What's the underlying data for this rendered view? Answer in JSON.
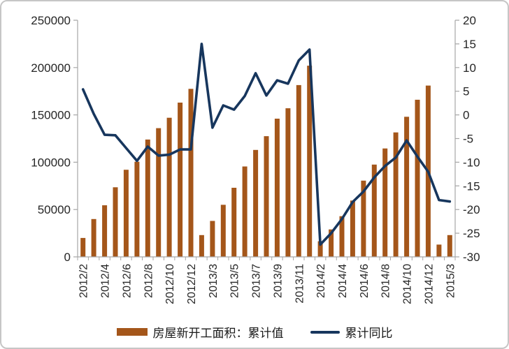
{
  "chart_data": {
    "type": "bar",
    "combo": "bar+line",
    "title": "",
    "categories": [
      "2012/2",
      "2012/3",
      "2012/4",
      "2012/5",
      "2012/6",
      "2012/7",
      "2012/8",
      "2012/9",
      "2012/10",
      "2012/11",
      "2012/12",
      "2013/2",
      "2013/3",
      "2013/4",
      "2013/5",
      "2013/6",
      "2013/7",
      "2013/8",
      "2013/9",
      "2013/10",
      "2013/11",
      "2013/12",
      "2014/2",
      "2014/3",
      "2014/4",
      "2014/5",
      "2014/6",
      "2014/7",
      "2014/8",
      "2014/9",
      "2014/10",
      "2014/11",
      "2014/12",
      "2015/2",
      "2015/3"
    ],
    "x_tick_labels_shown": [
      "2012/2",
      "2012/4",
      "2012/6",
      "2012/8",
      "2012/10",
      "2012/12",
      "2013/3",
      "2013/5",
      "2013/7",
      "2013/9",
      "2013/11",
      "2014/2",
      "2014/4",
      "2014/6",
      "2014/8",
      "2014/10",
      "2014/12",
      "2015/3"
    ],
    "series": [
      {
        "name": "房屋新开工面积：累计值",
        "type": "bar",
        "axis": "left",
        "color": "#A4561A",
        "values": [
          20000,
          40000,
          54500,
          73500,
          92000,
          100500,
          124000,
          136000,
          147000,
          163000,
          177500,
          23000,
          38000,
          55000,
          73000,
          95500,
          113000,
          127500,
          146000,
          157000,
          181500,
          202000,
          16500,
          29000,
          43000,
          59500,
          80500,
          97500,
          114500,
          131500,
          148000,
          166000,
          181000,
          13000,
          23000
        ]
      },
      {
        "name": "累计同比",
        "type": "line",
        "axis": "right",
        "color": "#17365D",
        "values": [
          5.4,
          0.2,
          -4.2,
          -4.3,
          -7.0,
          -9.7,
          -6.7,
          -8.6,
          -8.4,
          -7.3,
          -7.3,
          15.0,
          -2.7,
          2.0,
          1.1,
          4.0,
          8.8,
          4.1,
          7.3,
          6.6,
          11.5,
          13.8,
          -27.4,
          -25.0,
          -22.0,
          -18.4,
          -16.2,
          -13.2,
          -10.8,
          -9.0,
          -5.4,
          -8.8,
          -12.0,
          -18.0,
          -18.3
        ]
      }
    ],
    "left_axis": {
      "min": 0,
      "max": 250000,
      "tick_step": 50000,
      "tick_labels": [
        "0",
        "50000",
        "100000",
        "150000",
        "200000",
        "250000"
      ]
    },
    "right_axis": {
      "min": -30,
      "max": 20,
      "tick_step": 5,
      "tick_labels": [
        "-30",
        "-25",
        "-20",
        "-15",
        "-10",
        "-5",
        "0",
        "5",
        "10",
        "15",
        "20"
      ]
    },
    "grid": false,
    "legend_position": "bottom",
    "xlabel": "",
    "ylabel": ""
  },
  "legend": {
    "bar_label": "房屋新开工面积：累计值",
    "line_label": "累计同比"
  },
  "style": {
    "bar_color": "#A4561A",
    "line_color": "#17365D",
    "axis_color": "#a6a6a6",
    "text_color": "#262626"
  }
}
